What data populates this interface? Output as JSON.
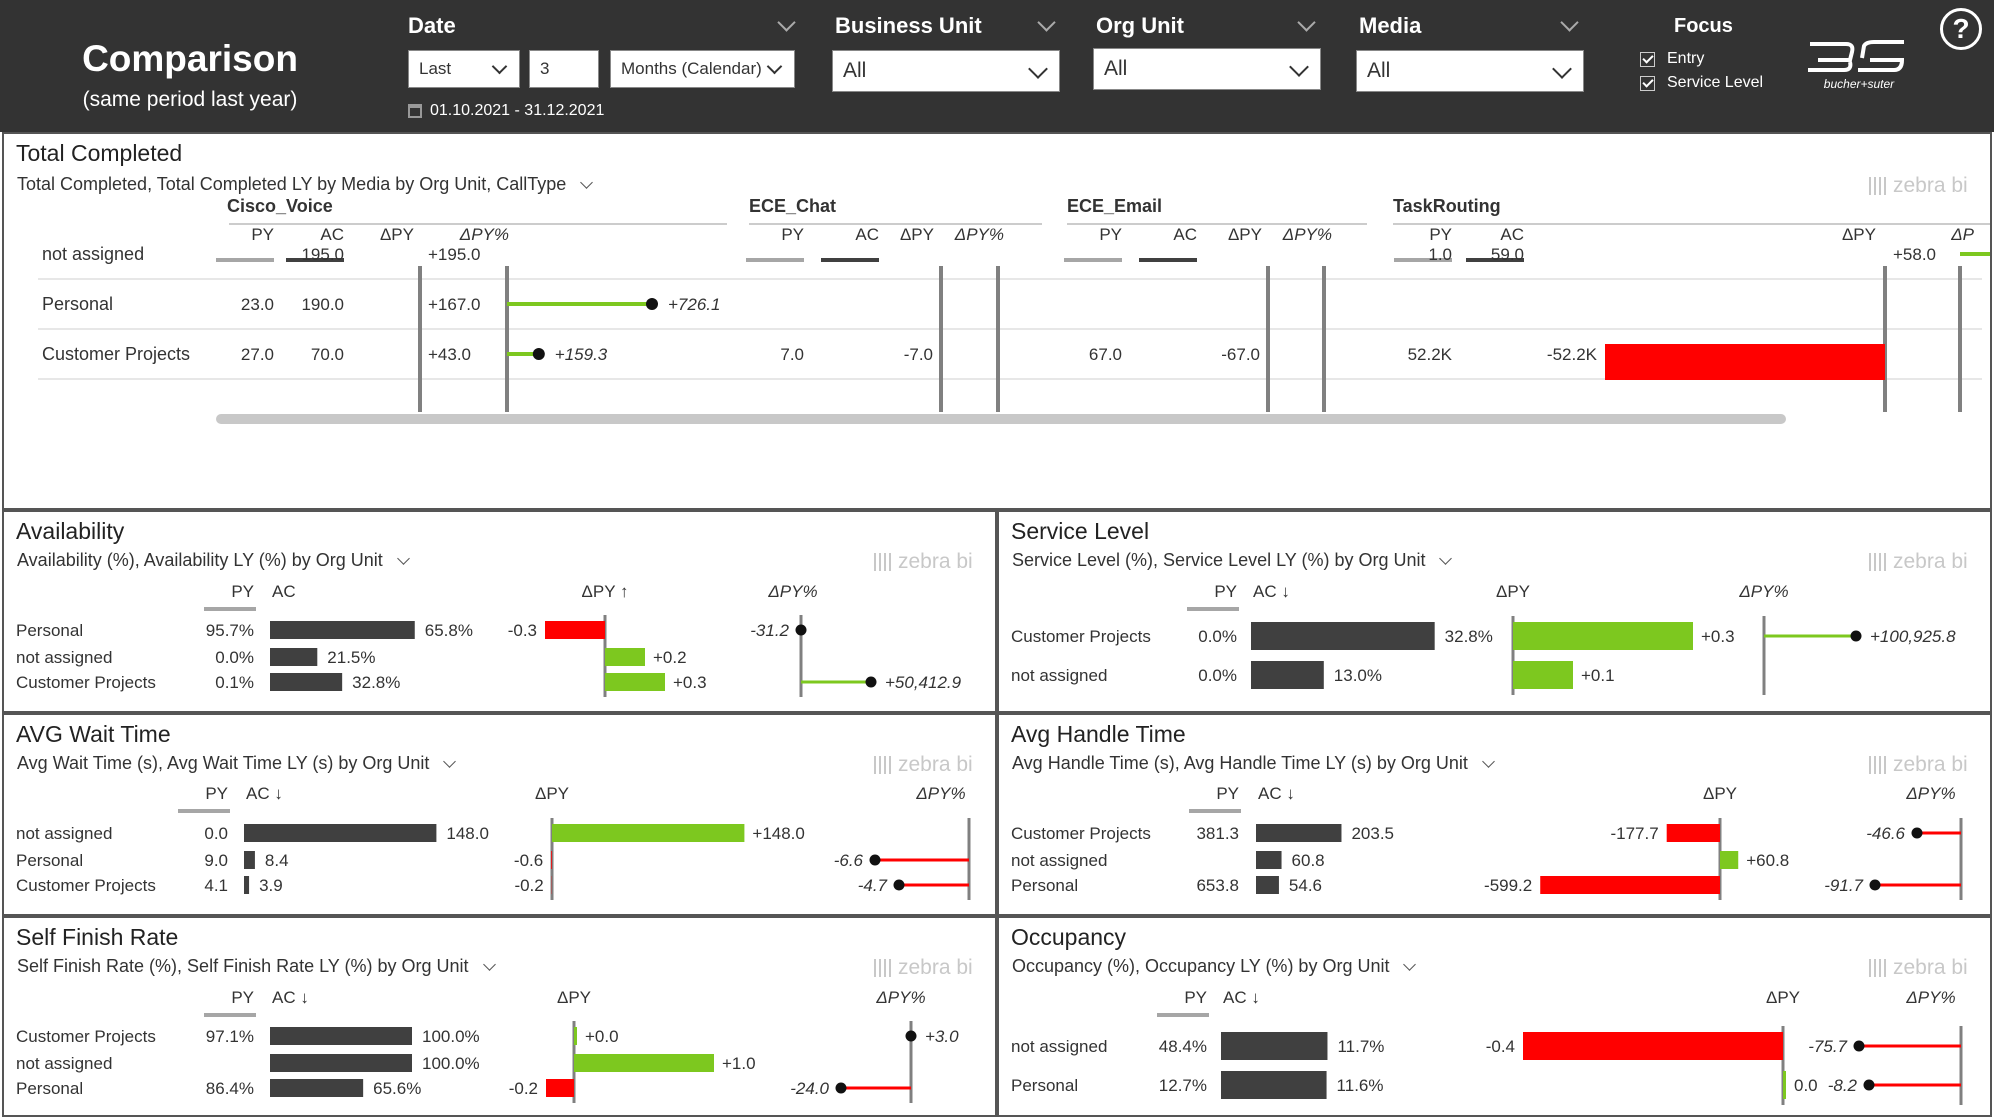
{
  "colors": {
    "header_bg": "#333333",
    "ac_bar": "#404040",
    "py_bar": "#a6a6a6",
    "positive": "#7dc81f",
    "negative": "#ff0000",
    "axis": "#808080"
  },
  "header": {
    "title": "Comparison",
    "subtitle": "(same period last year)",
    "filters": {
      "date": {
        "label": "Date",
        "mode": "Last",
        "count": "3",
        "unit": "Months (Calendar)",
        "range": "01.10.2021 - 31.12.2021"
      },
      "business_unit": {
        "label": "Business Unit",
        "value": "All"
      },
      "org_unit": {
        "label": "Org Unit",
        "value": "All"
      },
      "media": {
        "label": "Media",
        "value": "All"
      }
    },
    "focus": {
      "title": "Focus",
      "options": [
        {
          "label": "Entry",
          "checked": true
        },
        {
          "label": "Service Level",
          "checked": true
        }
      ]
    },
    "logo_text": "bucher+suter",
    "help_icon": "question-mark-circle-icon"
  },
  "total_completed": {
    "title": "Total Completed",
    "subtitle": "Total Completed, Total Completed LY by Media by Org Unit, CallType",
    "brand": "zebra bi",
    "rows": [
      "not assigned",
      "Personal",
      "Customer Projects"
    ],
    "groups": [
      {
        "name": "Cisco_Voice",
        "headers": [
          "PY",
          "AC",
          "ΔPY",
          "ΔPY%"
        ],
        "py": [
          null,
          23.0,
          27.0
        ],
        "py_labels": [
          "",
          "23.0",
          "27.0"
        ],
        "ac": [
          195.0,
          190.0,
          70.0
        ],
        "ac_labels": [
          "195.0",
          "190.0",
          "70.0"
        ],
        "dpy": [
          195.0,
          167.0,
          43.0
        ],
        "dpy_labels": [
          "+195.0",
          "+167.0",
          "+43.0"
        ],
        "dpct": [
          null,
          726.1,
          159.3
        ],
        "dpct_labels": [
          "",
          "+726.1",
          "+159.3"
        ]
      },
      {
        "name": "ECE_Chat",
        "headers": [
          "PY",
          "AC",
          "ΔPY",
          "ΔPY%"
        ],
        "py": [
          null,
          null,
          7.0
        ],
        "py_labels": [
          "",
          "",
          "7.0"
        ],
        "ac": [
          null,
          null,
          null
        ],
        "ac_labels": [
          "",
          "",
          ""
        ],
        "dpy": [
          null,
          null,
          -7.0
        ],
        "dpy_labels": [
          "",
          "",
          "-7.0"
        ]
      },
      {
        "name": "ECE_Email",
        "headers": [
          "PY",
          "AC",
          "ΔPY",
          "ΔPY%"
        ],
        "py": [
          null,
          null,
          67.0
        ],
        "py_labels": [
          "",
          "",
          "67.0"
        ],
        "ac": [
          null,
          null,
          null
        ],
        "ac_labels": [
          "",
          "",
          ""
        ],
        "dpy": [
          null,
          null,
          -67.0
        ],
        "dpy_labels": [
          "",
          "",
          "-67.0"
        ]
      },
      {
        "name": "TaskRouting",
        "headers": [
          "PY",
          "AC",
          "ΔPY",
          "ΔP"
        ],
        "py": [
          1.0,
          null,
          52200
        ],
        "py_labels": [
          "1.0",
          "",
          "52.2K"
        ],
        "ac": [
          59.0,
          null,
          null
        ],
        "ac_labels": [
          "59.0",
          "",
          ""
        ],
        "dpy": [
          58.0,
          null,
          -52200
        ],
        "dpy_labels": [
          "+58.0",
          "",
          "-52.2K"
        ]
      }
    ]
  },
  "availability": {
    "title": "Availability",
    "subtitle": "Availability (%), Availability LY (%) by Org Unit",
    "brand": "zebra bi",
    "headers": {
      "py": "PY",
      "ac": "AC",
      "dpy": "ΔPY ↑",
      "dpct": "ΔPY%"
    },
    "rows": [
      "Personal",
      "not assigned",
      "Customer Projects"
    ],
    "py_labels": [
      "95.7%",
      "0.0%",
      "0.1%"
    ],
    "ac": [
      65.8,
      21.5,
      32.8
    ],
    "ac_labels": [
      "65.8%",
      "21.5%",
      "32.8%"
    ],
    "dpy": [
      -0.3,
      0.2,
      0.3
    ],
    "dpy_labels": [
      "-0.3",
      "+0.2",
      "+0.3"
    ],
    "dpct": [
      -31.2,
      null,
      50412.9
    ],
    "dpct_labels": [
      "-31.2",
      "",
      "+50,412.9"
    ]
  },
  "service_level": {
    "title": "Service Level",
    "subtitle": "Service Level (%), Service Level LY (%) by Org Unit",
    "brand": "zebra bi",
    "headers": {
      "py": "PY",
      "ac": "AC ↓",
      "dpy": "ΔPY",
      "dpct": "ΔPY%"
    },
    "rows": [
      "Customer Projects",
      "not assigned"
    ],
    "py_labels": [
      "0.0%",
      "0.0%"
    ],
    "ac": [
      32.8,
      13.0
    ],
    "ac_labels": [
      "32.8%",
      "13.0%"
    ],
    "dpy": [
      0.3,
      0.1
    ],
    "dpy_labels": [
      "+0.3",
      "+0.1"
    ],
    "dpct": [
      100925.8,
      null
    ],
    "dpct_labels": [
      "+100,925.8",
      ""
    ]
  },
  "avg_wait": {
    "title": "AVG Wait Time",
    "subtitle": "Avg Wait Time (s), Avg Wait Time LY (s) by Org Unit",
    "brand": "zebra bi",
    "headers": {
      "py": "PY",
      "ac": "AC ↓",
      "dpy": "ΔPY",
      "dpct": "ΔPY%"
    },
    "rows": [
      "not assigned",
      "Personal",
      "Customer Projects"
    ],
    "py_labels": [
      "0.0",
      "9.0",
      "4.1"
    ],
    "ac": [
      148.0,
      8.4,
      3.9
    ],
    "ac_labels": [
      "148.0",
      "8.4",
      "3.9"
    ],
    "dpy": [
      148.0,
      -0.6,
      -0.2
    ],
    "dpy_labels": [
      "+148.0",
      "-0.6",
      "-0.2"
    ],
    "dpct": [
      null,
      -6.6,
      -4.7
    ],
    "dpct_labels": [
      "",
      "-6.6",
      "-4.7"
    ]
  },
  "avg_handle": {
    "title": "Avg Handle Time",
    "subtitle": "Avg Handle Time (s), Avg Handle Time LY (s) by Org Unit",
    "brand": "zebra bi",
    "headers": {
      "py": "PY",
      "ac": "AC ↓",
      "dpy": "ΔPY",
      "dpct": "ΔPY%"
    },
    "rows": [
      "Customer Projects",
      "not assigned",
      "Personal"
    ],
    "py_labels": [
      "381.3",
      "",
      "653.8"
    ],
    "ac": [
      203.5,
      60.8,
      54.6
    ],
    "ac_labels": [
      "203.5",
      "60.8",
      "54.6"
    ],
    "dpy": [
      -177.7,
      60.8,
      -599.2
    ],
    "dpy_labels": [
      "-177.7",
      "+60.8",
      "-599.2"
    ],
    "dpct": [
      -46.6,
      null,
      -91.7
    ],
    "dpct_labels": [
      "-46.6",
      "",
      "-91.7"
    ]
  },
  "self_finish": {
    "title": "Self Finish Rate",
    "subtitle": "Self Finish Rate (%), Self Finish Rate LY (%) by Org Unit",
    "brand": "zebra bi",
    "headers": {
      "py": "PY",
      "ac": "AC ↓",
      "dpy": "ΔPY",
      "dpct": "ΔPY%"
    },
    "rows": [
      "Customer Projects",
      "not assigned",
      "Personal"
    ],
    "py_labels": [
      "97.1%",
      "",
      "86.4%"
    ],
    "ac": [
      100.0,
      100.0,
      65.6
    ],
    "ac_labels": [
      "100.0%",
      "100.0%",
      "65.6%"
    ],
    "dpy": [
      0.0,
      1.0,
      -0.2
    ],
    "dpy_labels": [
      "+0.0",
      "+1.0",
      "-0.2"
    ],
    "dpct": [
      3.0,
      null,
      -24.0
    ],
    "dpct_labels": [
      "+3.0",
      "",
      "-24.0"
    ]
  },
  "occupancy": {
    "title": "Occupancy",
    "subtitle": "Occupancy (%), Occupancy LY (%) by Org Unit",
    "brand": "zebra bi",
    "headers": {
      "py": "PY",
      "ac": "AC ↓",
      "dpy": "ΔPY",
      "dpct": "ΔPY%"
    },
    "rows": [
      "not assigned",
      "Personal"
    ],
    "py_labels": [
      "48.4%",
      "12.7%"
    ],
    "ac": [
      11.7,
      11.6
    ],
    "ac_labels": [
      "11.7%",
      "11.6%"
    ],
    "dpy": [
      -0.4,
      0.0
    ],
    "dpy_labels": [
      "-0.4",
      "0.0"
    ],
    "dpct": [
      -75.7,
      -8.2
    ],
    "dpct_labels": [
      "-75.7",
      "-8.2"
    ]
  }
}
